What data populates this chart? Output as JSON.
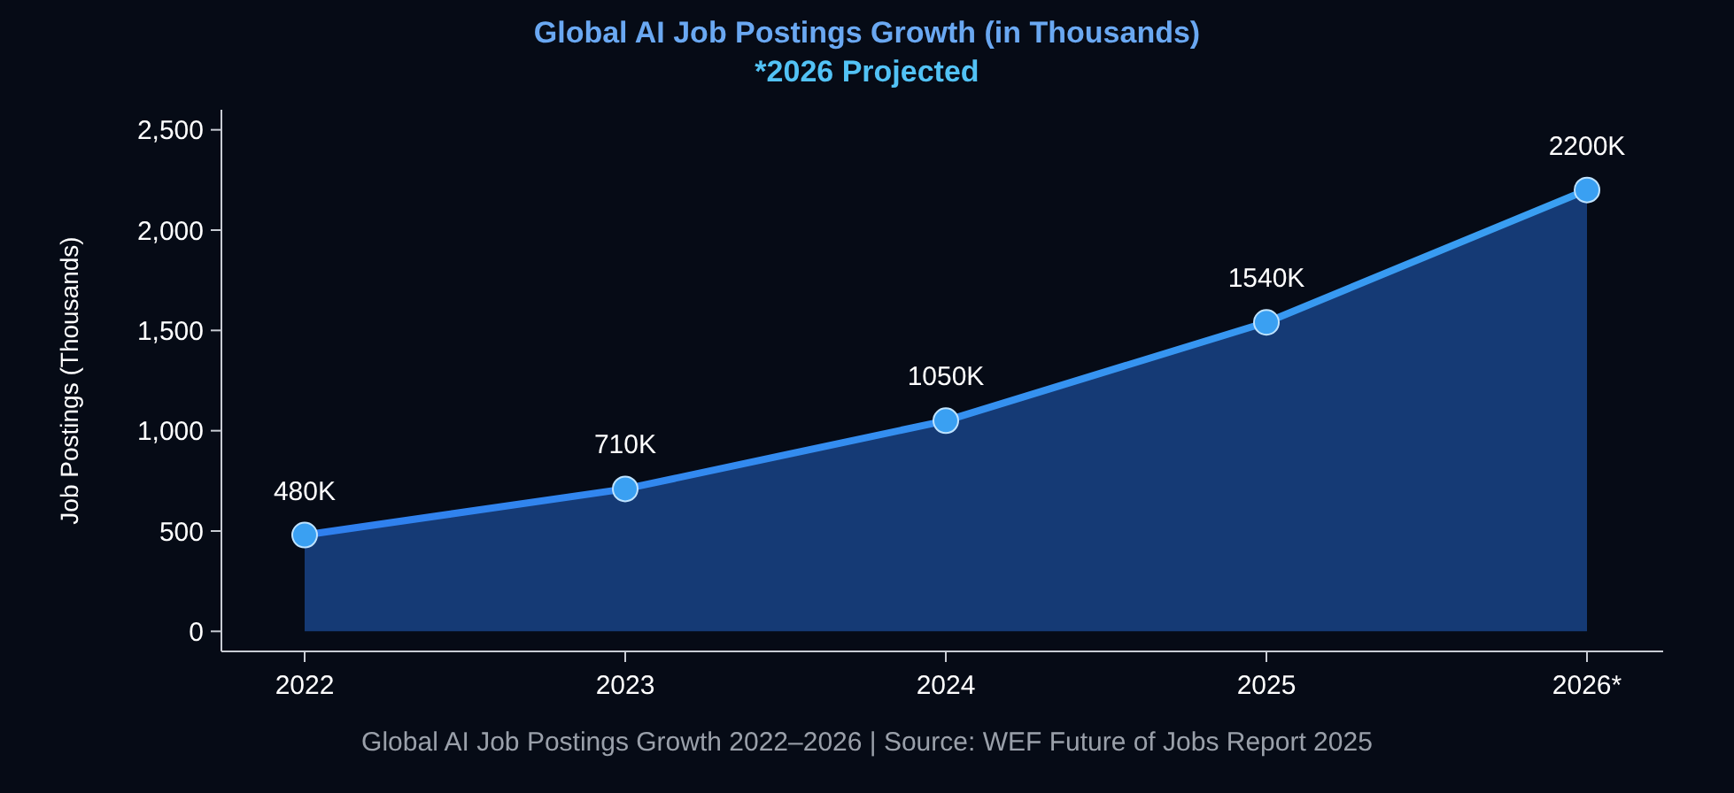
{
  "chart_data": {
    "type": "area",
    "title": "Global AI Job Postings Growth (in Thousands)",
    "subtitle": "*2026 Projected",
    "ylabel": "Job Postings (Thousands)",
    "annotations": [
      "Global AI Job Postings Growth 2022–2026 | Source: WEF Future of Jobs Report 2025"
    ],
    "categories": [
      "2022",
      "2023",
      "2024",
      "2025",
      "2026*"
    ],
    "series": [
      {
        "color": "#3aa0f2",
        "values": [
          480,
          710,
          1050,
          1540,
          2200
        ],
        "value_labels": [
          "480K",
          "710K",
          "1050K",
          "1540K",
          "2200K"
        ]
      }
    ],
    "ylim": [
      -100,
      2600
    ],
    "yticks": [
      0,
      500,
      {
        "value": 1000,
        "label": "1,000"
      },
      {
        "value": 1500,
        "label": "1,500"
      },
      {
        "value": 2000,
        "label": "2,000"
      },
      {
        "value": 2500,
        "label": "2,500"
      }
    ],
    "grid": false,
    "marker": "circle",
    "line_style": "solid"
  }
}
